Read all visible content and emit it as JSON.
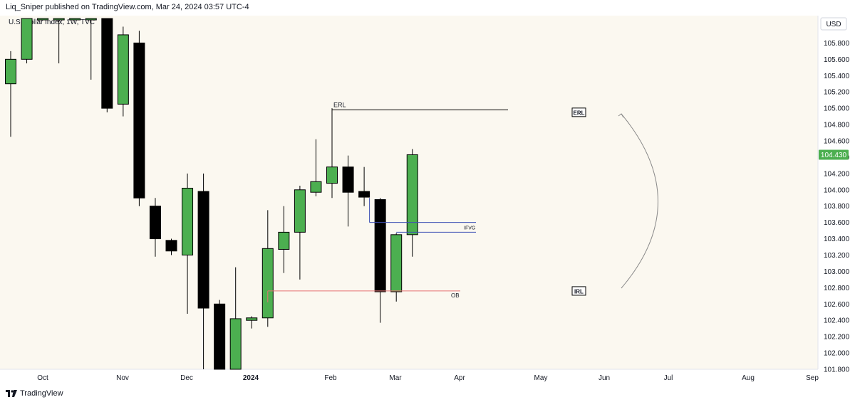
{
  "header": {
    "published_text": "Liq_Sniper published on TradingView.com, Mar 24, 2024 03:57 UTC-4"
  },
  "symbol_label": "U.S. Dollar Index, 1W, TVC",
  "currency": "USD",
  "last_price": "104.430",
  "footer": {
    "brand": "TradingView"
  },
  "colors": {
    "background": "#fbf8f0",
    "bull": "#4caf50",
    "bear": "#000000",
    "price_tag": "#4caf50",
    "ifvg_line": "#3f51b5",
    "ob_line": "#e57373"
  },
  "chart_data": {
    "type": "candlestick",
    "title": "",
    "ylim": [
      101.8,
      106.1
    ],
    "y_ticks": [
      "105.800",
      "105.600",
      "105.400",
      "105.200",
      "105.000",
      "104.800",
      "104.600",
      "104.400",
      "104.200",
      "104.000",
      "103.800",
      "103.600",
      "103.400",
      "103.200",
      "103.000",
      "102.800",
      "102.600",
      "102.400",
      "102.200",
      "102.000",
      "101.800"
    ],
    "x_labels": [
      "Oct",
      "Nov",
      "Dec",
      "2024",
      "Feb",
      "Mar",
      "Apr",
      "May",
      "Jun",
      "Jul",
      "Aug",
      "Sep"
    ],
    "candles": [
      {
        "o": 105.3,
        "h": 105.7,
        "l": 104.65,
        "c": 105.6
      },
      {
        "o": 105.6,
        "h": 106.1,
        "l": 105.55,
        "c": 106.1
      },
      {
        "o": 106.1,
        "h": 106.1,
        "l": 106.1,
        "c": 106.1
      },
      {
        "o": 106.1,
        "h": 106.1,
        "l": 105.55,
        "c": 106.1
      },
      {
        "o": 106.1,
        "h": 106.1,
        "l": 106.1,
        "c": 106.1
      },
      {
        "o": 106.1,
        "h": 106.1,
        "l": 105.35,
        "c": 106.1
      },
      {
        "o": 106.1,
        "h": 106.1,
        "l": 104.95,
        "c": 105.0
      },
      {
        "o": 105.05,
        "h": 106.0,
        "l": 104.9,
        "c": 105.9
      },
      {
        "o": 105.8,
        "h": 105.95,
        "l": 103.8,
        "c": 103.9
      },
      {
        "o": 103.8,
        "h": 103.9,
        "l": 103.18,
        "c": 103.4
      },
      {
        "o": 103.38,
        "h": 103.4,
        "l": 103.2,
        "c": 103.25
      },
      {
        "o": 103.2,
        "h": 104.2,
        "l": 102.48,
        "c": 104.02
      },
      {
        "o": 103.98,
        "h": 104.2,
        "l": 101.8,
        "c": 102.55
      },
      {
        "o": 102.6,
        "h": 102.65,
        "l": 101.8,
        "c": 101.8
      },
      {
        "o": 101.8,
        "h": 103.05,
        "l": 101.8,
        "c": 102.42
      },
      {
        "o": 102.4,
        "h": 102.45,
        "l": 102.3,
        "c": 102.43
      },
      {
        "o": 102.43,
        "h": 103.75,
        "l": 102.32,
        "c": 103.28
      },
      {
        "o": 103.27,
        "h": 103.8,
        "l": 102.98,
        "c": 103.48
      },
      {
        "o": 103.48,
        "h": 104.05,
        "l": 102.9,
        "c": 104.0
      },
      {
        "o": 103.97,
        "h": 104.62,
        "l": 103.92,
        "c": 104.1
      },
      {
        "o": 104.08,
        "h": 105.0,
        "l": 103.9,
        "c": 104.28
      },
      {
        "o": 104.28,
        "h": 104.42,
        "l": 103.55,
        "c": 103.97
      },
      {
        "o": 103.98,
        "h": 104.28,
        "l": 103.8,
        "c": 103.91
      },
      {
        "o": 103.88,
        "h": 103.9,
        "l": 102.37,
        "c": 102.75
      },
      {
        "o": 102.75,
        "h": 103.47,
        "l": 102.63,
        "c": 103.45
      },
      {
        "o": 103.45,
        "h": 104.5,
        "l": 103.18,
        "c": 104.43
      }
    ],
    "annotations": [
      {
        "label": "ERL",
        "price": 104.98
      },
      {
        "label": "IFVG",
        "price_top": 103.6,
        "price_bottom": 103.48
      },
      {
        "label": "OB",
        "price": 102.76
      },
      {
        "label": "ERL",
        "price": 104.95,
        "boxed": true
      },
      {
        "label": "IRL",
        "price": 102.76,
        "boxed": true
      }
    ]
  }
}
